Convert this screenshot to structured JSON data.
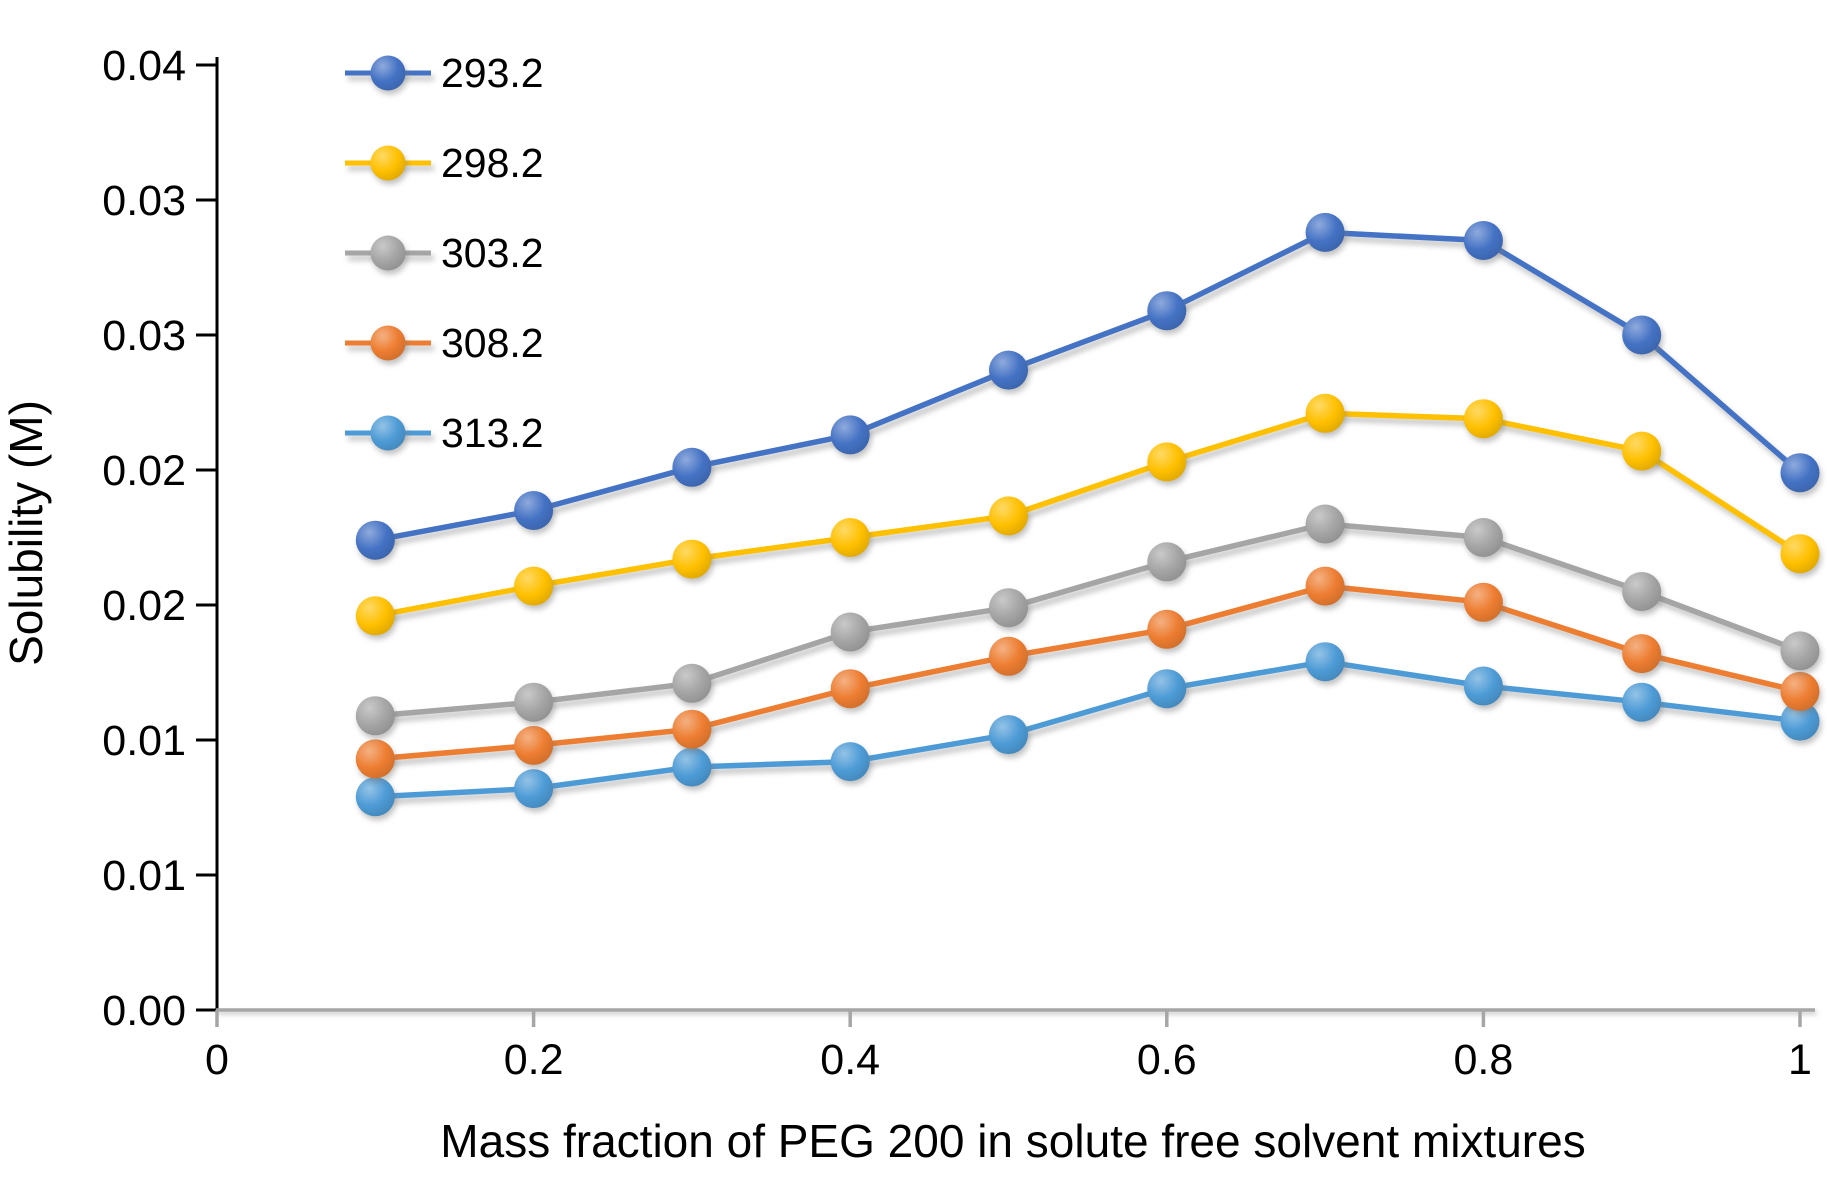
{
  "chart_data": {
    "type": "line",
    "title": "",
    "xlabel": "Mass fraction of PEG 200 in solute free solvent mixtures",
    "ylabel": "Solubility (M)",
    "x": [
      0.1,
      0.2,
      0.3,
      0.4,
      0.5,
      0.6,
      0.7,
      0.8,
      0.9,
      1.0
    ],
    "series": [
      {
        "name": "313.2",
        "color": "#4D9BD6",
        "values": [
          0.0079,
          0.0082,
          0.009,
          0.0092,
          0.0102,
          0.0119,
          0.0129,
          0.012,
          0.0114,
          0.0107
        ]
      },
      {
        "name": "308.2",
        "color": "#ED7D31",
        "values": [
          0.0093,
          0.0098,
          0.0104,
          0.0119,
          0.0131,
          0.0141,
          0.0157,
          0.0151,
          0.0132,
          0.0118
        ]
      },
      {
        "name": "303.2",
        "color": "#A5A5A5",
        "values": [
          0.0109,
          0.0114,
          0.0121,
          0.014,
          0.0149,
          0.0166,
          0.018,
          0.0175,
          0.0155,
          0.0133
        ]
      },
      {
        "name": "298.2",
        "color": "#FFC000",
        "values": [
          0.0146,
          0.0157,
          0.0167,
          0.0175,
          0.0183,
          0.0203,
          0.0221,
          0.0219,
          0.0207,
          0.0169
        ]
      },
      {
        "name": "293.2",
        "color": "#4472C4",
        "values": [
          0.0174,
          0.0185,
          0.0201,
          0.0213,
          0.0237,
          0.0259,
          0.0288,
          0.0285,
          0.025,
          0.0199
        ]
      }
    ],
    "xlim": [
      0,
      1
    ],
    "ylim": [
      0,
      0.035
    ],
    "grid": false,
    "legend_position": "top-left-vertical",
    "y_ticks": {
      "values": [
        0,
        0.005,
        0.01,
        0.015,
        0.02,
        0.025,
        0.03,
        0.035
      ],
      "labels": [
        "0.00",
        "0.01",
        "0.01",
        "0.02",
        "0.02",
        "0.03",
        "0.03",
        "0.04"
      ]
    },
    "x_ticks": {
      "values": [
        0,
        0.2,
        0.4,
        0.6,
        0.8,
        1
      ],
      "labels": [
        "0",
        "0.2",
        "0.4",
        "0.6",
        "0.8",
        "1"
      ]
    },
    "axis_colors": {
      "y_axis": "#000000",
      "x_axis": "#A6A6A6"
    }
  }
}
